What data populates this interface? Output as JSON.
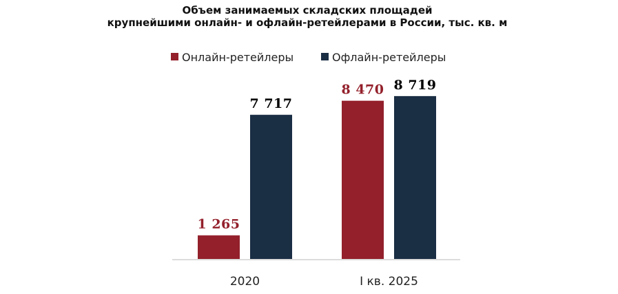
{
  "chart_data": {
    "type": "bar",
    "title": "Объем занимаемых складских площадей крупнейшими онлайн- и офлайн-ретейлерами в России, тыс. кв. м",
    "title_lines": [
      "Объем занимаемых складских площадей",
      "крупнейшими онлайн- и офлайн-ретейлерами в России, тыс. кв. м"
    ],
    "categories": [
      "2020",
      "I кв. 2025"
    ],
    "series": [
      {
        "name": "Онлайн-ретейлеры",
        "color": "#93202b",
        "values": [
          1265,
          8470
        ],
        "labels": [
          "1 265",
          "8 470"
        ]
      },
      {
        "name": "Офлайн-ретейлеры",
        "color": "#1a2e44",
        "values": [
          7717,
          8719
        ],
        "labels": [
          "7 717",
          "8 719"
        ]
      }
    ],
    "legend_position": "top-center",
    "grid": false,
    "ylim": [
      0,
      9500
    ]
  }
}
